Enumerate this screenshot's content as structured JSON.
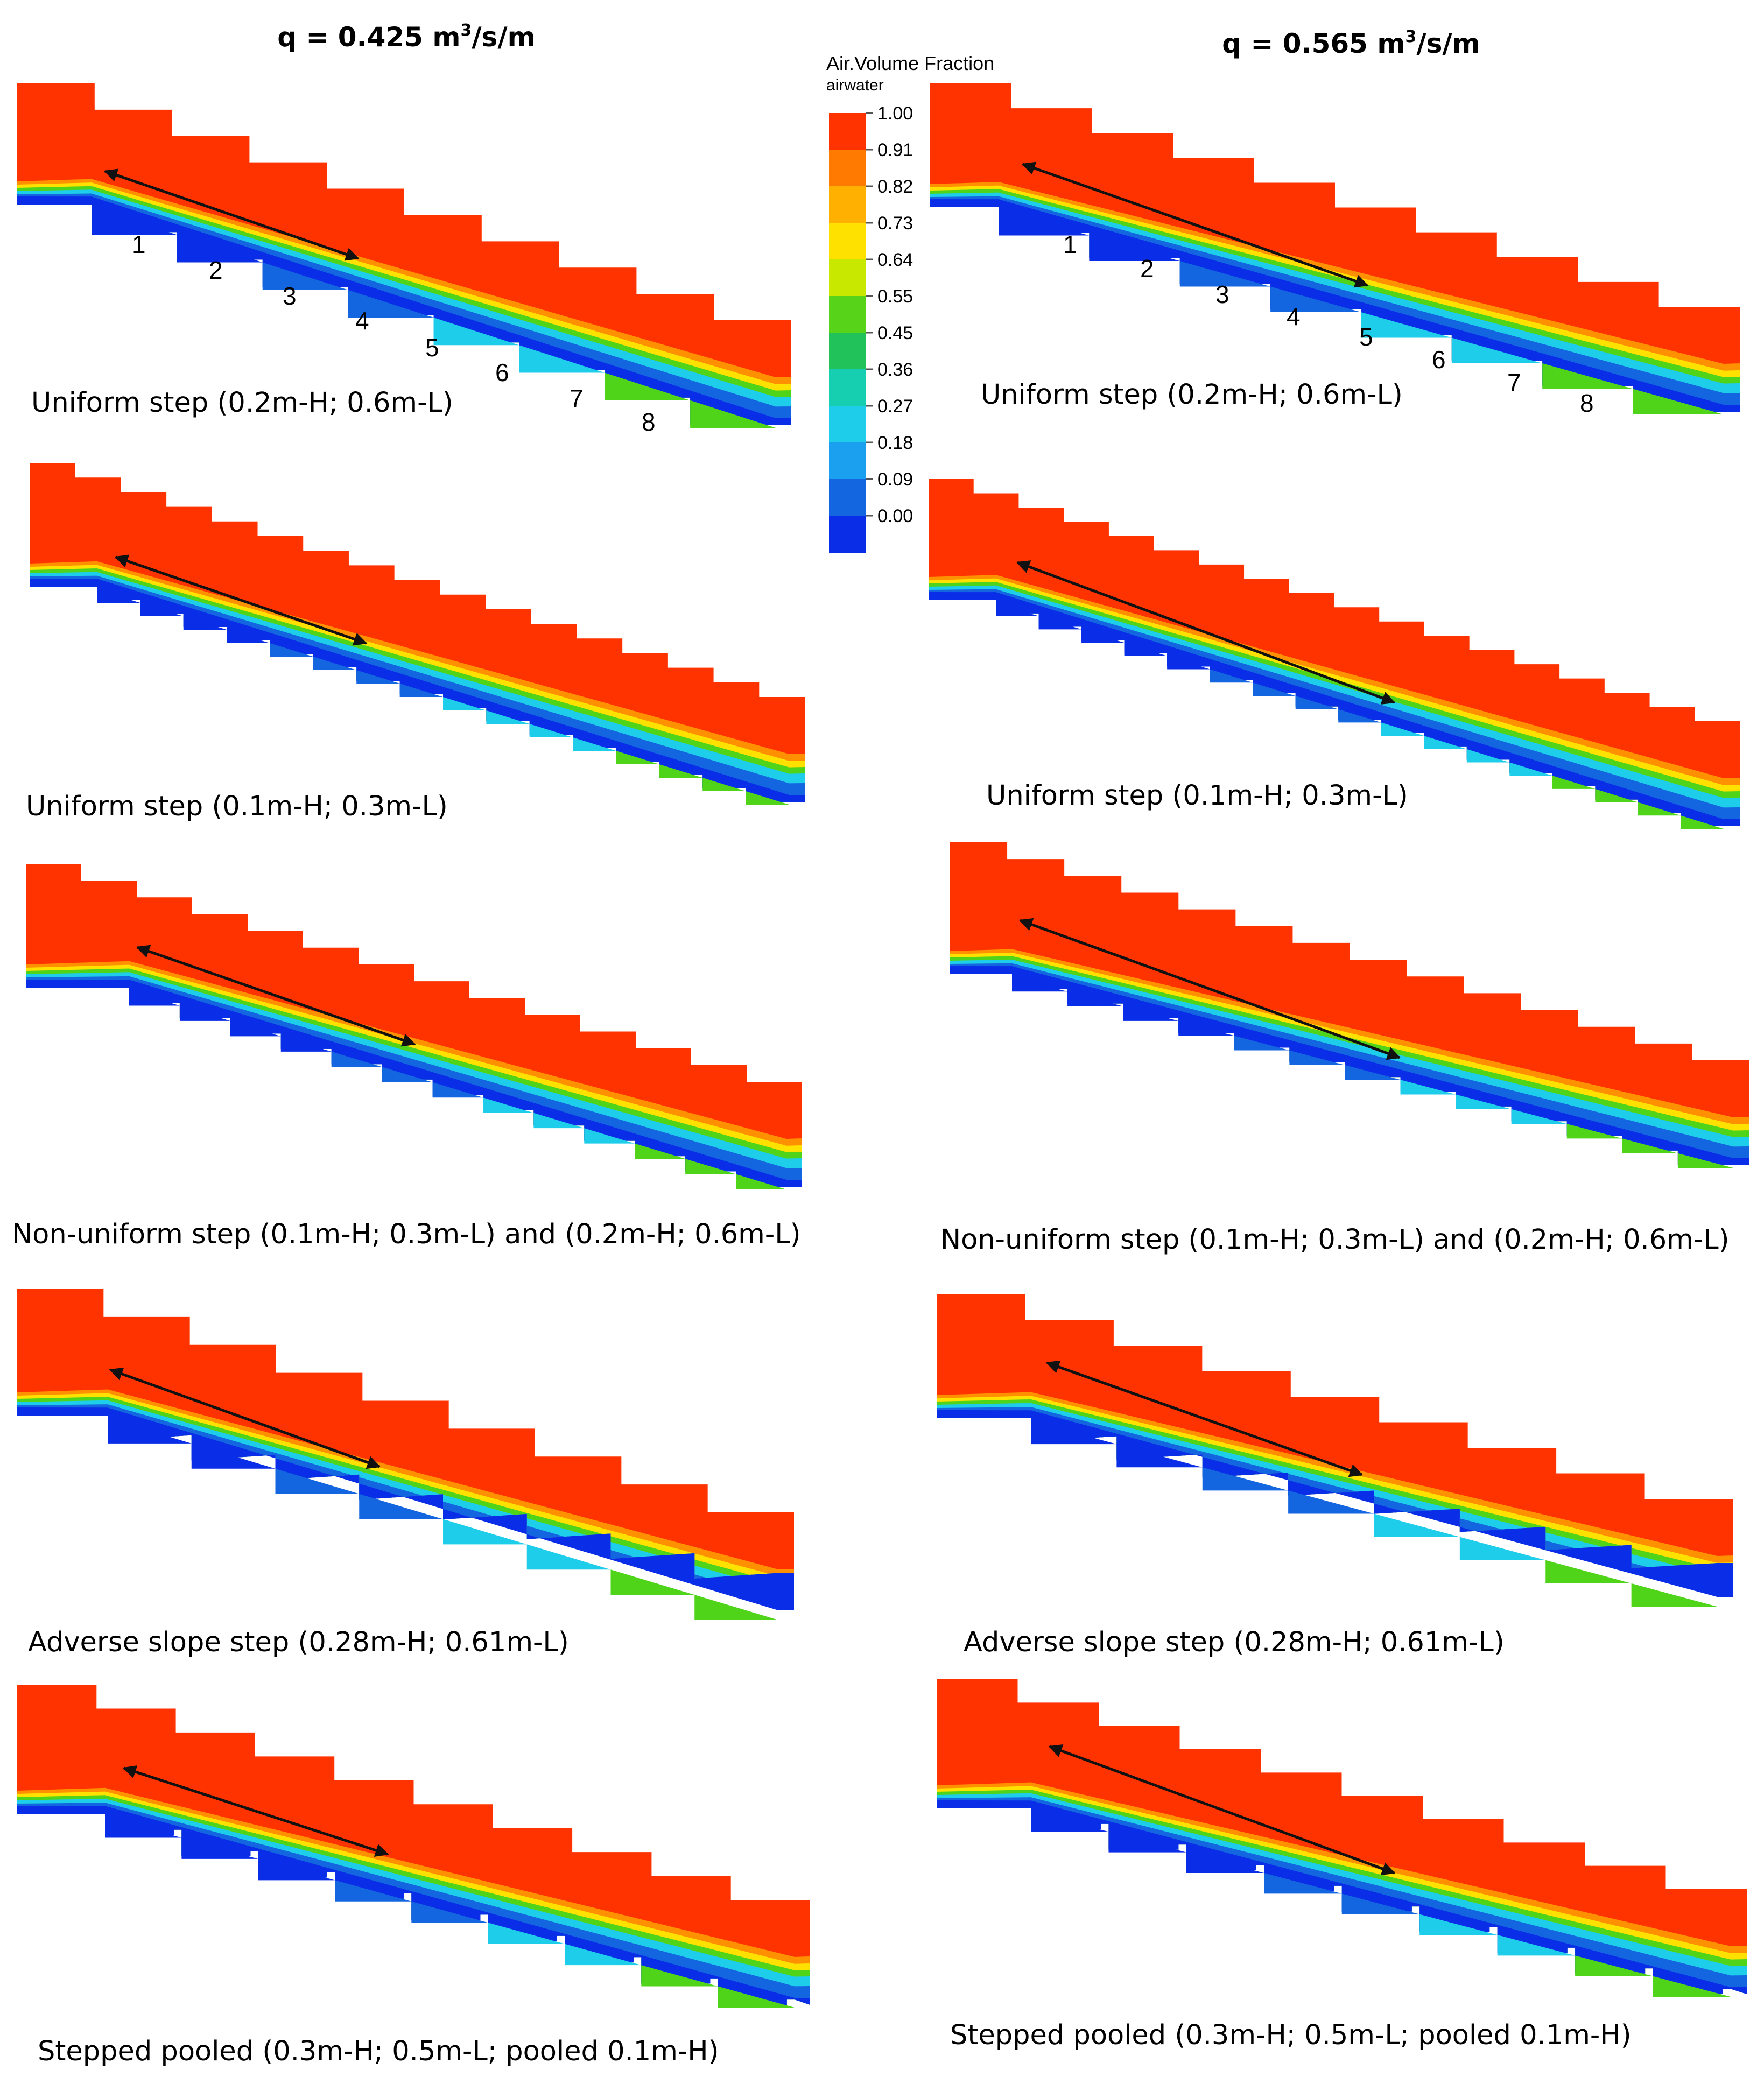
{
  "figure": {
    "column_titles": [
      {
        "q": "q = 0.425 m",
        "sup": "3",
        "unit": "/s/m"
      },
      {
        "q": "q = 0.565 m",
        "sup": "3",
        "unit": "/s/m"
      }
    ],
    "colorbar": {
      "title": "Air.Volume Fraction",
      "subtitle": "airwater",
      "ticks": [
        "1.00",
        "0.91",
        "0.82",
        "0.73",
        "0.64",
        "0.55",
        "0.45",
        "0.36",
        "0.27",
        "0.18",
        "0.09",
        "0.00"
      ],
      "colors": [
        "#ff3300",
        "#ff7a00",
        "#ffb000",
        "#ffe100",
        "#c8e800",
        "#57d31a",
        "#22c25a",
        "#15cfb0",
        "#1ecde9",
        "#1aa0ee",
        "#1466e0",
        "#0a2de8"
      ]
    },
    "step_numbers": [
      "1",
      "2",
      "3",
      "4",
      "5",
      "6",
      "7",
      "8"
    ],
    "rows": [
      {
        "caption": "Uniform step (0.2m-H; 0.6m-L)"
      },
      {
        "caption": "Uniform step (0.1m-H; 0.3m-L)"
      },
      {
        "caption": "Non-uniform step (0.1m-H; 0.3m-L) and (0.2m-H; 0.6m-L)"
      },
      {
        "caption": "Adverse slope step (0.28m-H; 0.61m-L)"
      },
      {
        "caption": "Stepped pooled (0.3m-H; 0.5m-L; pooled 0.1m-H)"
      }
    ],
    "colors": {
      "air": "#ff3300",
      "water_deep": "#0a2de8",
      "water_mid": "#1466e0",
      "water_light": "#1ecde9",
      "band_green": "#4fd41a",
      "band_yellow": "#ffe100",
      "band_orange": "#ff9000",
      "arrow": "#111111"
    }
  }
}
